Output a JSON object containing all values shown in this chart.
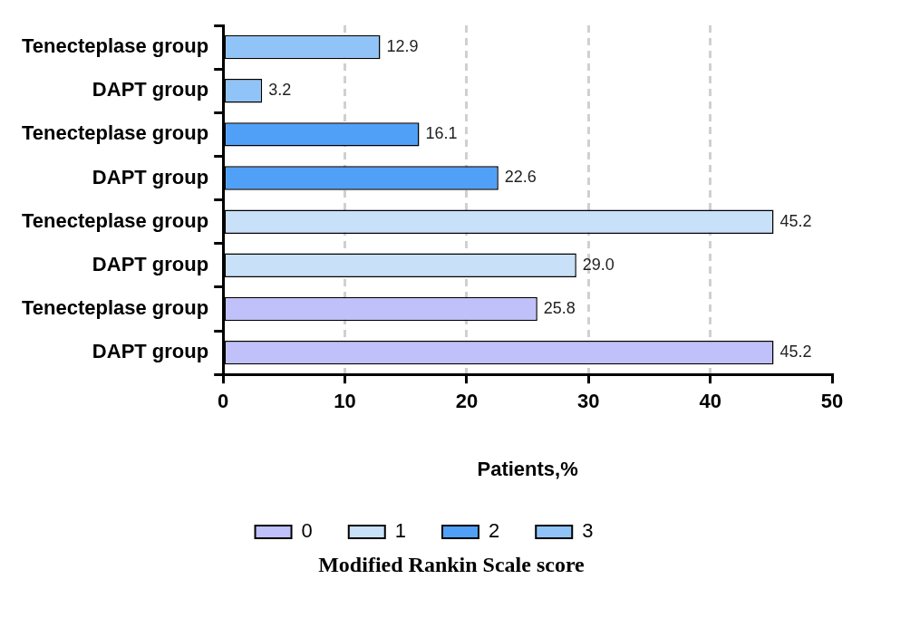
{
  "chart_data": {
    "type": "bar",
    "orientation": "horizontal",
    "xlabel": "Patients,%",
    "legend_title": "Modified Rankin Scale score",
    "legend": "bottom",
    "grid": "x",
    "categories": [
      "Tenecteplase group",
      "DAPT group",
      "Tenecteplase group",
      "DAPT group",
      "Tenecteplase group",
      "DAPT group",
      "Tenecteplase group",
      "DAPT group"
    ],
    "xlim": [
      0,
      50
    ],
    "xticks": [
      0,
      10,
      20,
      30,
      40,
      50
    ],
    "series": [
      {
        "name": "0",
        "color": "#c0c0fa",
        "values": [
          null,
          null,
          null,
          null,
          null,
          null,
          25.8,
          45.2
        ],
        "value_labels": [
          null,
          null,
          null,
          null,
          null,
          null,
          "25.8",
          "45.2"
        ]
      },
      {
        "name": "1",
        "color": "#c8e0f8",
        "values": [
          null,
          null,
          null,
          null,
          45.2,
          29.0,
          null,
          null
        ],
        "value_labels": [
          null,
          null,
          null,
          null,
          "45.2",
          "29.0",
          null,
          null
        ]
      },
      {
        "name": "2",
        "color": "#50a0f8",
        "values": [
          null,
          null,
          16.1,
          22.6,
          null,
          null,
          null,
          null
        ],
        "value_labels": [
          null,
          null,
          "16.1",
          "22.6",
          null,
          null,
          null,
          null
        ]
      },
      {
        "name": "3",
        "color": "#90c4f8",
        "values": [
          12.9,
          3.2,
          null,
          null,
          null,
          null,
          null,
          null
        ],
        "value_labels": [
          "12.9",
          "3.2",
          null,
          null,
          null,
          null,
          null,
          null
        ]
      }
    ]
  }
}
